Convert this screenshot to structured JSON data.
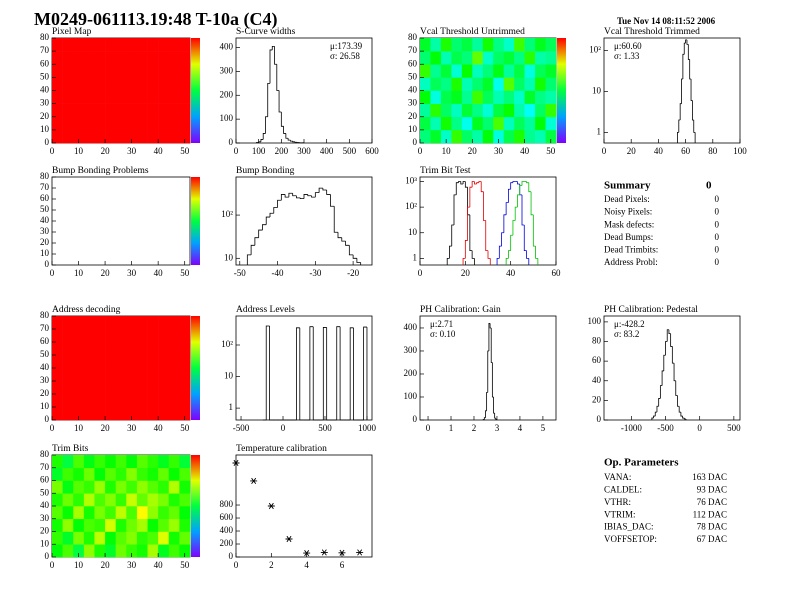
{
  "header": {
    "title": "M0249-061113.19:48 T-10a (C4)",
    "date": "Tue Nov 14 08:11:52 2006"
  },
  "summary": {
    "title": "Summary",
    "total": "0",
    "rows": [
      [
        "Dead Pixels:",
        "0"
      ],
      [
        "Noisy Pixels:",
        "0"
      ],
      [
        "Mask defects:",
        "0"
      ],
      [
        "Dead Bumps:",
        "0"
      ],
      [
        "Dead Trimbits:",
        "0"
      ],
      [
        "Address Probl:",
        "0"
      ]
    ]
  },
  "op_parameters": {
    "title": "Op. Parameters",
    "rows": [
      [
        "VANA:",
        "163 DAC"
      ],
      [
        "CALDEL:",
        "93 DAC"
      ],
      [
        "VTHR:",
        "76 DAC"
      ],
      [
        "VTRIM:",
        "112 DAC"
      ],
      [
        "IBIAS_DAC:",
        "78 DAC"
      ],
      [
        "VOFFSETOP:",
        "67 DAC"
      ]
    ]
  },
  "chart_data": [
    {
      "type": "heatmap",
      "title": "Pixel Map",
      "xlim": [
        0,
        52
      ],
      "ylim": [
        0,
        80
      ],
      "xticks": [
        0,
        10,
        20,
        30,
        40,
        50
      ],
      "yticks": [
        0,
        10,
        20,
        30,
        40,
        50,
        60,
        70,
        80
      ],
      "zlim": [
        0,
        1
      ],
      "values": [
        [
          1,
          1,
          1,
          1,
          1,
          1,
          1,
          1,
          1,
          1,
          1,
          1,
          1
        ],
        [
          1,
          1,
          1,
          1,
          1,
          1,
          1,
          1,
          1,
          1,
          1,
          1,
          1
        ],
        [
          1,
          1,
          1,
          1,
          1,
          1,
          1,
          1,
          1,
          1,
          1,
          1,
          1
        ],
        [
          1,
          1,
          1,
          1,
          1,
          1,
          1,
          1,
          1,
          1,
          1,
          1,
          1
        ],
        [
          1,
          1,
          1,
          1,
          1,
          1,
          1,
          1,
          1,
          1,
          1,
          1,
          1
        ],
        [
          1,
          1,
          1,
          1,
          1,
          1,
          1,
          1,
          1,
          1,
          1,
          1,
          1
        ],
        [
          1,
          1,
          1,
          1,
          1,
          1,
          1,
          1,
          1,
          1,
          1,
          1,
          1
        ],
        [
          1,
          1,
          1,
          1,
          1,
          1,
          1,
          1,
          1,
          1,
          1,
          1,
          1
        ]
      ]
    },
    {
      "type": "histogram",
      "title": "S-Curve widths",
      "xlim": [
        0,
        600
      ],
      "ylim": [
        0,
        440
      ],
      "xticks": [
        0,
        100,
        200,
        300,
        400,
        500,
        600
      ],
      "yticks": [
        0,
        100,
        200,
        300,
        400
      ],
      "color": "#000000",
      "stats": [
        "μ:173.39",
        "σ: 26.58"
      ],
      "stats_corner": "right",
      "bins": [
        90,
        100,
        110,
        120,
        130,
        140,
        150,
        160,
        170,
        180,
        190,
        200,
        210,
        220,
        230,
        240,
        250,
        260,
        270,
        280,
        290,
        300
      ],
      "values": [
        2,
        5,
        15,
        40,
        110,
        250,
        390,
        405,
        330,
        220,
        130,
        70,
        40,
        20,
        12,
        8,
        5,
        3,
        2,
        1,
        1
      ]
    },
    {
      "type": "heatmap",
      "title": "Vcal Threshold Untrimmed",
      "xlim": [
        0,
        52
      ],
      "ylim": [
        0,
        80
      ],
      "xticks": [
        0,
        10,
        20,
        30,
        40,
        50
      ],
      "yticks": [
        0,
        10,
        20,
        30,
        40,
        50,
        60,
        70,
        80
      ],
      "zlim": [
        0,
        1
      ],
      "values": [
        [
          0.45,
          0.52,
          0.38,
          0.6,
          0.47,
          0.41,
          0.55,
          0.36,
          0.49,
          0.58,
          0.43,
          0.4,
          0.5
        ],
        [
          0.5,
          0.4,
          0.57,
          0.44,
          0.35,
          0.53,
          0.46,
          0.62,
          0.39,
          0.48,
          0.42,
          0.55,
          0.37
        ],
        [
          0.42,
          0.59,
          0.47,
          0.39,
          0.51,
          0.44,
          0.37,
          0.5,
          0.56,
          0.41,
          0.34,
          0.47,
          0.6
        ],
        [
          0.55,
          0.36,
          0.49,
          0.53,
          0.43,
          0.61,
          0.48,
          0.4,
          0.45,
          0.38,
          0.52,
          0.44,
          0.41
        ],
        [
          0.39,
          0.48,
          0.44,
          0.58,
          0.4,
          0.46,
          0.52,
          0.35,
          0.63,
          0.47,
          0.4,
          0.57,
          0.46
        ],
        [
          0.6,
          0.43,
          0.51,
          0.37,
          0.56,
          0.39,
          0.45,
          0.54,
          0.42,
          0.5,
          0.36,
          0.48,
          0.52
        ],
        [
          0.46,
          0.55,
          0.4,
          0.49,
          0.45,
          0.64,
          0.38,
          0.47,
          0.51,
          0.44,
          0.59,
          0.41,
          0.43
        ],
        [
          0.52,
          0.41,
          0.58,
          0.46,
          0.5,
          0.42,
          0.57,
          0.44,
          0.38,
          0.61,
          0.45,
          0.53,
          0.48
        ]
      ]
    },
    {
      "type": "histogram",
      "title": "Vcal Threshold Trimmed",
      "log_y": true,
      "xlim": [
        0,
        100
      ],
      "ylim": [
        0.55,
        200
      ],
      "xticks": [
        0,
        20,
        40,
        60,
        80,
        100
      ],
      "yticks": [
        1,
        10,
        {
          "value": 100,
          "label": "10²"
        }
      ],
      "color": "#000000",
      "stats": [
        "μ:60.60",
        "σ: 1.33"
      ],
      "stats_corner": "left",
      "bins": [
        54,
        55,
        56,
        57,
        58,
        59,
        60,
        61,
        62,
        63,
        64,
        65,
        66,
        67
      ],
      "values": [
        1,
        2,
        5,
        20,
        80,
        150,
        180,
        140,
        60,
        20,
        6,
        2,
        1
      ]
    },
    {
      "type": "heatmap",
      "title": "Bump Bonding Problems",
      "xlim": [
        0,
        52
      ],
      "ylim": [
        0,
        80
      ],
      "xticks": [
        0,
        10,
        20,
        30,
        40,
        50
      ],
      "yticks": [
        0,
        10,
        20,
        30,
        40,
        50,
        60,
        70,
        80
      ],
      "zlim": [
        0,
        1
      ]
    },
    {
      "type": "histogram",
      "title": "Bump Bonding",
      "log_y": true,
      "xlim": [
        -51,
        -15
      ],
      "ylim": [
        7,
        760
      ],
      "xticks": [
        -50,
        -40,
        -30,
        -20
      ],
      "yticks": [
        10,
        {
          "value": 100,
          "label": "10²"
        }
      ],
      "color": "#000000",
      "bins": [
        -48,
        -47,
        -46,
        -45,
        -44,
        -43,
        -42,
        -41,
        -40,
        -39,
        -38,
        -37,
        -36,
        -35,
        -34,
        -33,
        -32,
        -31,
        -30,
        -29,
        -28,
        -27,
        -26,
        -25,
        -24,
        -23,
        -22,
        -21,
        -20,
        -19,
        -18
      ],
      "values": [
        12,
        20,
        30,
        45,
        60,
        90,
        110,
        150,
        220,
        300,
        260,
        320,
        280,
        250,
        240,
        300,
        280,
        260,
        330,
        420,
        380,
        300,
        160,
        40,
        30,
        25,
        20,
        12,
        10,
        8
      ]
    },
    {
      "type": "histogram",
      "title": "Trim Bit Test",
      "log_y": true,
      "xlim": [
        0,
        60
      ],
      "ylim": [
        0.55,
        1500
      ],
      "xticks": [
        0,
        20,
        40,
        60
      ],
      "yticks": [
        1,
        10,
        {
          "value": 100,
          "label": "10²"
        },
        {
          "value": 1000,
          "label": "10³"
        }
      ],
      "series": [
        {
          "color": "#000000",
          "bins": [
            12,
            13,
            14,
            15,
            16,
            17,
            18,
            19,
            20,
            21,
            22,
            23,
            24
          ],
          "values": [
            1,
            3,
            20,
            300,
            900,
            1000,
            800,
            1000,
            600,
            50,
            2,
            1
          ]
        },
        {
          "color": "#e00000",
          "bins": [
            19,
            20,
            21,
            22,
            23,
            24,
            25,
            26,
            27,
            28,
            29,
            30,
            31
          ],
          "values": [
            1,
            5,
            100,
            600,
            1000,
            800,
            900,
            1000,
            400,
            30,
            2,
            1
          ]
        },
        {
          "color": "#0000e0",
          "bins": [
            34,
            35,
            36,
            37,
            38,
            39,
            40,
            41,
            42,
            43,
            44,
            45,
            46,
            47,
            48
          ],
          "values": [
            1,
            3,
            10,
            50,
            150,
            500,
            900,
            1000,
            1000,
            800,
            300,
            20,
            2,
            1
          ]
        },
        {
          "color": "#00c000",
          "bins": [
            38,
            39,
            40,
            41,
            42,
            43,
            44,
            45,
            46,
            47,
            48,
            49,
            50,
            51,
            52
          ],
          "values": [
            1,
            2,
            8,
            30,
            100,
            300,
            700,
            1000,
            1000,
            900,
            400,
            50,
            3,
            1
          ]
        }
      ]
    },
    {
      "type": "heatmap",
      "title": "Address decoding",
      "xlim": [
        0,
        52
      ],
      "ylim": [
        0,
        80
      ],
      "xticks": [
        0,
        10,
        20,
        30,
        40,
        50
      ],
      "yticks": [
        0,
        10,
        20,
        30,
        40,
        50,
        60,
        70,
        80
      ],
      "zlim": [
        0,
        1
      ],
      "values": [
        [
          1,
          1,
          1,
          1,
          1,
          1,
          1,
          1,
          1,
          1,
          1,
          1,
          1
        ],
        [
          1,
          1,
          1,
          1,
          1,
          1,
          1,
          1,
          1,
          1,
          1,
          1,
          1
        ],
        [
          1,
          1,
          1,
          1,
          1,
          1,
          1,
          1,
          1,
          1,
          1,
          1,
          1
        ],
        [
          1,
          1,
          1,
          1,
          1,
          1,
          1,
          1,
          1,
          1,
          1,
          1,
          1
        ],
        [
          1,
          1,
          1,
          1,
          1,
          1,
          1,
          1,
          1,
          1,
          1,
          1,
          1
        ],
        [
          1,
          1,
          1,
          1,
          1,
          1,
          1,
          1,
          1,
          1,
          1,
          1,
          1
        ],
        [
          1,
          1,
          1,
          1,
          1,
          1,
          1,
          1,
          1,
          1,
          1,
          1,
          1
        ],
        [
          1,
          1,
          1,
          1,
          1,
          1,
          1,
          1,
          1,
          1,
          1,
          1,
          1
        ]
      ]
    },
    {
      "type": "histogram",
      "title": "Address Levels",
      "log_y": true,
      "xlim": [
        -560,
        1060
      ],
      "ylim": [
        0.42,
        830
      ],
      "xticks": [
        -500,
        0,
        500,
        1000
      ],
      "yticks": [
        1,
        10,
        {
          "value": 100,
          "label": "10²"
        }
      ],
      "color": "#000000",
      "bins": [
        -240,
        -200,
        -160,
        -120,
        -80,
        -40,
        0,
        40,
        80,
        120,
        160,
        200,
        240,
        280,
        320,
        360,
        400,
        440,
        480,
        520,
        560,
        600,
        640,
        680,
        720,
        760,
        800,
        840,
        880,
        920,
        960,
        1000
      ],
      "values": [
        0,
        400,
        0,
        0,
        0,
        0,
        0,
        0,
        0,
        0,
        350,
        0,
        0,
        0,
        380,
        0,
        0,
        0,
        360,
        0,
        0,
        0,
        380,
        0,
        0,
        0,
        350,
        0,
        0,
        0,
        370
      ]
    },
    {
      "type": "histogram",
      "title": "PH Calibration: Gain",
      "xlim": [
        -0.35,
        5.57
      ],
      "ylim": [
        0,
        452
      ],
      "xticks": [
        0,
        1,
        2,
        3,
        4,
        5
      ],
      "yticks": [
        0,
        100,
        200,
        300,
        400
      ],
      "color": "#000000",
      "stats": [
        "μ:2.71",
        "σ: 0.10"
      ],
      "stats_corner": "left",
      "bins": [
        2.4,
        2.45,
        2.5,
        2.55,
        2.6,
        2.65,
        2.7,
        2.75,
        2.8,
        2.85,
        2.9,
        2.95,
        3.0
      ],
      "values": [
        2,
        10,
        40,
        120,
        300,
        420,
        400,
        250,
        100,
        30,
        8,
        2
      ]
    },
    {
      "type": "histogram",
      "title": "PH Calibration: Pedestal",
      "xlim": [
        -1400,
        590
      ],
      "ylim": [
        0,
        106
      ],
      "xticks": [
        -1000,
        -500,
        0,
        500
      ],
      "yticks": [
        0,
        20,
        40,
        60,
        80,
        100
      ],
      "color": "#000000",
      "stats": [
        "μ:-428.2",
        "σ: 83.2"
      ],
      "stats_corner": "left",
      "bins": [
        -700,
        -675,
        -650,
        -625,
        -600,
        -575,
        -550,
        -525,
        -500,
        -475,
        -450,
        -425,
        -400,
        -375,
        -350,
        -325,
        -300,
        -275,
        -250,
        -225,
        -200
      ],
      "values": [
        2,
        4,
        8,
        14,
        22,
        35,
        50,
        66,
        80,
        92,
        88,
        75,
        58,
        40,
        25,
        14,
        8,
        4,
        2,
        1
      ]
    },
    {
      "type": "heatmap",
      "title": "Trim Bits",
      "xlim": [
        0,
        52
      ],
      "ylim": [
        0,
        80
      ],
      "xticks": [
        0,
        10,
        20,
        30,
        40,
        50
      ],
      "yticks": [
        0,
        10,
        20,
        30,
        40,
        50,
        60,
        70,
        80
      ],
      "zlim": [
        0,
        1
      ],
      "values": [
        [
          0.55,
          0.62,
          0.5,
          0.68,
          0.58,
          0.52,
          0.65,
          0.6,
          0.57,
          0.7,
          0.53,
          0.61,
          0.56
        ],
        [
          0.6,
          0.52,
          0.66,
          0.58,
          0.72,
          0.55,
          0.63,
          0.67,
          0.59,
          0.62,
          0.75,
          0.57,
          0.64
        ],
        [
          0.57,
          0.68,
          0.55,
          0.62,
          0.6,
          0.74,
          0.58,
          0.65,
          0.7,
          0.56,
          0.63,
          0.69,
          0.58
        ],
        [
          0.63,
          0.56,
          0.7,
          0.57,
          0.66,
          0.61,
          0.72,
          0.62,
          0.78,
          0.68,
          0.6,
          0.64,
          0.55
        ],
        [
          0.58,
          0.65,
          0.59,
          0.71,
          0.62,
          0.67,
          0.6,
          0.73,
          0.64,
          0.7,
          0.66,
          0.58,
          0.62
        ],
        [
          0.66,
          0.54,
          0.63,
          0.6,
          0.69,
          0.58,
          0.66,
          0.61,
          0.68,
          0.63,
          0.59,
          0.71,
          0.57
        ],
        [
          0.52,
          0.61,
          0.57,
          0.65,
          0.55,
          0.63,
          0.59,
          0.67,
          0.6,
          0.57,
          0.64,
          0.56,
          0.62
        ],
        [
          0.58,
          0.5,
          0.62,
          0.54,
          0.6,
          0.56,
          0.61,
          0.55,
          0.63,
          0.59,
          0.53,
          0.6,
          0.51
        ]
      ]
    },
    {
      "type": "scatter",
      "title": "Temperature calibration",
      "xlim": [
        0,
        7.7
      ],
      "ylim": [
        0,
        1570
      ],
      "xticks": [
        0,
        2,
        4,
        6
      ],
      "yticks": [
        0,
        200,
        400,
        600,
        800
      ],
      "color": "#000000",
      "x": [
        0,
        1,
        2,
        3,
        4,
        5,
        6,
        7
      ],
      "values": [
        1447,
        1170,
        785,
        277,
        60,
        70,
        65,
        70
      ]
    }
  ]
}
